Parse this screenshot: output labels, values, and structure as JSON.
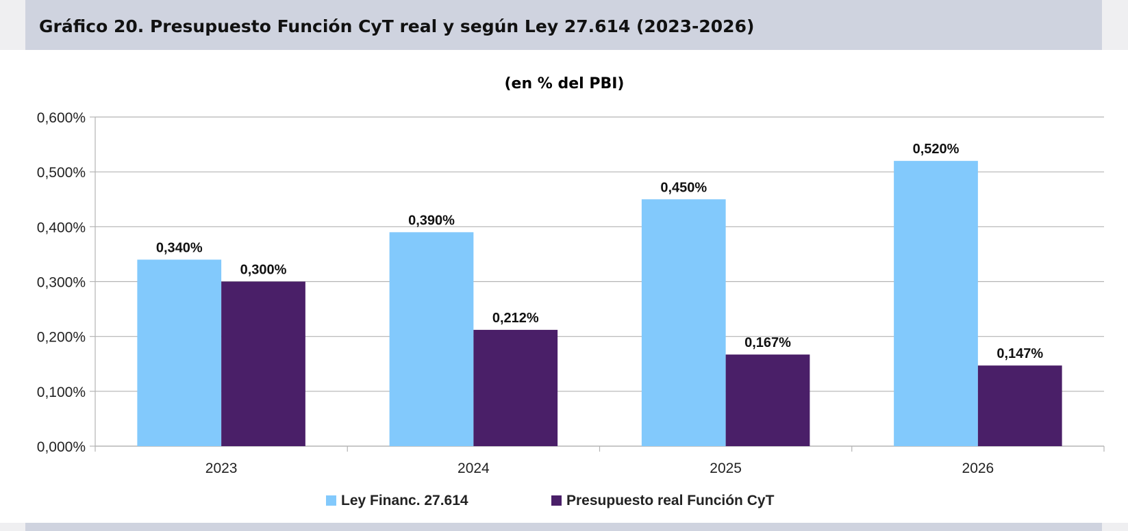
{
  "header": {
    "title": "Gráfico 20. Presupuesto Función CyT real y según Ley 27.614 (2023-2026)"
  },
  "chart_data": {
    "type": "bar",
    "title": "",
    "subtitle": "(en % del PBI)",
    "xlabel": "",
    "ylabel": "",
    "categories": [
      "2023",
      "2024",
      "2025",
      "2026"
    ],
    "series": [
      {
        "name": "Ley Financ. 27.614",
        "values": [
          0.34,
          0.39,
          0.45,
          0.52
        ],
        "labels": [
          "0,340%",
          "0,390%",
          "0,450%",
          "0,520%"
        ],
        "color": "#82c9fc"
      },
      {
        "name": "Presupuesto real Función CyT",
        "values": [
          0.3,
          0.212,
          0.167,
          0.147
        ],
        "labels": [
          "0,300%",
          "0,212%",
          "0,167%",
          "0,147%"
        ],
        "color": "#4a1f68"
      }
    ],
    "ylim": [
      0,
      0.6
    ],
    "yticks": [
      0,
      0.1,
      0.2,
      0.3,
      0.4,
      0.5,
      0.6
    ],
    "ytick_labels": [
      "0,000%",
      "0,100%",
      "0,200%",
      "0,300%",
      "0,400%",
      "0,500%",
      "0,600%"
    ],
    "grid": true,
    "legend": "bottom"
  }
}
